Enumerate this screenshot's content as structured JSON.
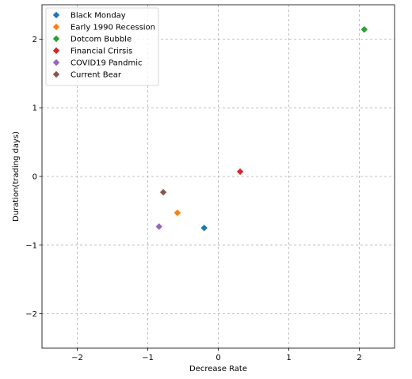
{
  "chart_data": {
    "type": "scatter",
    "title": "",
    "xlabel": "Decrease Rate",
    "ylabel": "Duration(trading days)",
    "xlim": [
      -2.5,
      2.5
    ],
    "ylim": [
      -2.5,
      2.5
    ],
    "xticks": [
      -2,
      -1,
      0,
      1,
      2
    ],
    "yticks": [
      -2,
      -1,
      0,
      1,
      2
    ],
    "xtick_labels": [
      "−2",
      "−1",
      "0",
      "1",
      "2"
    ],
    "ytick_labels": [
      "−2",
      "−1",
      "0",
      "1",
      "2"
    ],
    "grid": true,
    "legend": "top-left",
    "marker": "diamond",
    "series": [
      {
        "name": "Black Monday",
        "color": "#1f77b4",
        "x": [
          -0.2
        ],
        "y": [
          -0.75
        ]
      },
      {
        "name": "Early 1990 Recession",
        "color": "#ff7f0e",
        "x": [
          -0.58
        ],
        "y": [
          -0.53
        ]
      },
      {
        "name": "Dotcom Bubble",
        "color": "#2ca02c",
        "x": [
          2.07
        ],
        "y": [
          2.14
        ]
      },
      {
        "name": "Financial Crirsis",
        "color": "#d62728",
        "x": [
          0.31
        ],
        "y": [
          0.07
        ]
      },
      {
        "name": "COVID19 Pandmic",
        "color": "#9467bd",
        "x": [
          -0.84
        ],
        "y": [
          -0.73
        ]
      },
      {
        "name": "Current Bear",
        "color": "#8c564b",
        "x": [
          -0.78
        ],
        "y": [
          -0.23
        ]
      }
    ]
  }
}
